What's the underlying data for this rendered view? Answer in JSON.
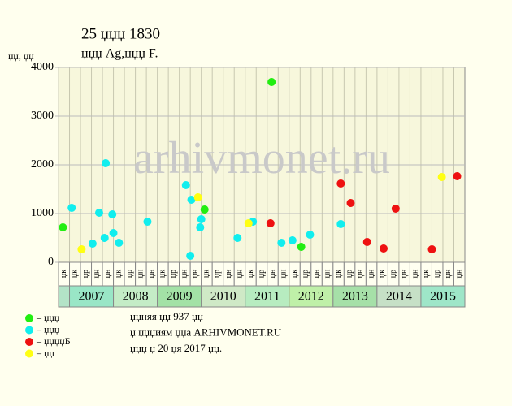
{
  "chart_data": {
    "type": "scatter",
    "title": "25 џџџ 1830",
    "subtitle": "џџџ Ag,џџџ F.",
    "y_label": "џџ, џџ",
    "watermark": "arhivmonet.ru",
    "xlim": [
      0,
      37
    ],
    "ylim": [
      0,
      4000
    ],
    "yticks": [
      0,
      1000,
      2000,
      3000,
      4000
    ],
    "grid": true,
    "columns": [
      "џк",
      "џк",
      "џр",
      "џн",
      "џн",
      "џк",
      "џр",
      "џн",
      "џн",
      "џк",
      "џр",
      "џн",
      "џн",
      "џк",
      "џр",
      "џн",
      "џн",
      "џк",
      "џр",
      "џн",
      "џн",
      "џк",
      "џр",
      "џн",
      "џн",
      "џк",
      "џр",
      "џн",
      "џн",
      "џк",
      "џр",
      "џн",
      "џн",
      "џк",
      "џр",
      "џн",
      "џн"
    ],
    "years": [
      {
        "label": "2007",
        "color": "#99e6c6"
      },
      {
        "label": "2008",
        "color": "#c4ecc6"
      },
      {
        "label": "2009",
        "color": "#a3e2a6"
      },
      {
        "label": "2010",
        "color": "#cfe9c6"
      },
      {
        "label": "2011",
        "color": "#b7ecc0"
      },
      {
        "label": "2012",
        "color": "#bff0a8"
      },
      {
        "label": "2013",
        "color": "#a6e0a8"
      },
      {
        "label": "2014",
        "color": "#c6e0c6"
      },
      {
        "label": "2015",
        "color": "#9ee6c8"
      }
    ],
    "first_cell_color": "#b3e3c7",
    "series": [
      {
        "name": "– џџџ",
        "color": "#22ee11",
        "x": [
          0.4,
          19.4,
          13.3,
          22.1
        ],
        "values": [
          717,
          3700,
          1083,
          317
        ]
      },
      {
        "name": "– џџџ",
        "color": "#11eeee",
        "x": [
          1.2,
          3.1,
          3.7,
          4.2,
          4.3,
          4.9,
          5.0,
          5.5,
          8.1,
          11.6,
          12.0,
          12.1,
          12.9,
          13.0,
          16.3,
          17.7,
          20.3,
          21.3,
          22.9,
          25.7
        ],
        "values": [
          1117,
          383,
          1017,
          500,
          2033,
          983,
          600,
          400,
          833,
          1583,
          133,
          1283,
          717,
          883,
          500,
          833,
          400,
          450,
          567,
          783
        ]
      },
      {
        "name": "– џџџџБ",
        "color": "#ee1111",
        "x": [
          19.3,
          25.7,
          26.6,
          28.1,
          29.6,
          30.7,
          34.0,
          36.3
        ],
        "values": [
          800,
          1617,
          1217,
          417,
          283,
          1100,
          267,
          1767
        ]
      },
      {
        "name": "– џџ",
        "color": "#ffff11",
        "x": [
          2.1,
          12.7,
          17.3,
          34.9
        ],
        "values": [
          267,
          1333,
          800,
          1750
        ]
      }
    ],
    "notes": [
      "џџняя џџ 937 џџ",
      "џ џџџиям џџа ARHIVMONET.RU",
      "џџџ џ 20 џя 2017 џџ."
    ]
  }
}
